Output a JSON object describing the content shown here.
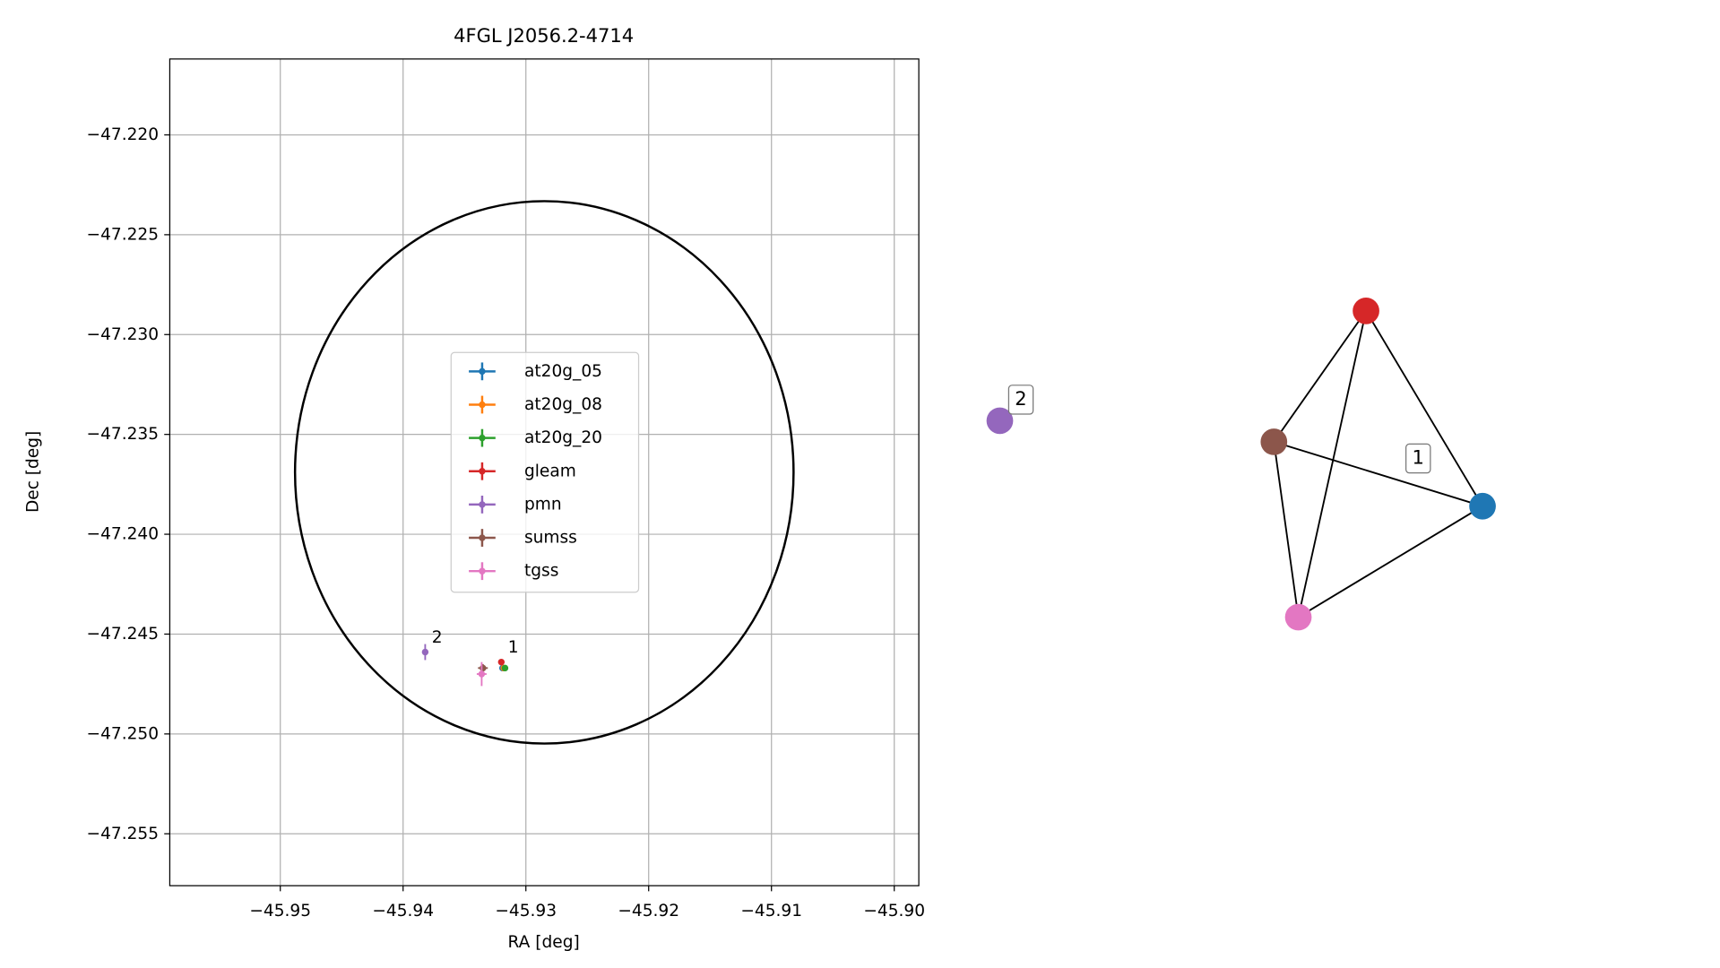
{
  "chart_data": [
    {
      "type": "errorbar",
      "title": "4FGL J2056.2-4714",
      "x_label": "RA [deg]",
      "y_label": "Dec [deg]",
      "xlim": [
        -45.959,
        -45.898
      ],
      "ylim": [
        -47.2576,
        -47.2162
      ],
      "xticks": [
        {
          "value": -45.95,
          "label": "−45.95"
        },
        {
          "value": -45.94,
          "label": "−45.94"
        },
        {
          "value": -45.93,
          "label": "−45.93"
        },
        {
          "value": -45.92,
          "label": "−45.92"
        },
        {
          "value": -45.91,
          "label": "−45.91"
        },
        {
          "value": -45.9,
          "label": "−45.90"
        }
      ],
      "yticks": [
        {
          "value": -47.22,
          "label": "−47.220"
        },
        {
          "value": -47.225,
          "label": "−47.225"
        },
        {
          "value": -47.23,
          "label": "−47.230"
        },
        {
          "value": -47.235,
          "label": "−47.235"
        },
        {
          "value": -47.24,
          "label": "−47.240"
        },
        {
          "value": -47.245,
          "label": "−47.245"
        },
        {
          "value": -47.25,
          "label": "−47.250"
        },
        {
          "value": -47.255,
          "label": "−47.255"
        }
      ],
      "grid": true,
      "legend": "center",
      "ellipse": {
        "ra": -45.9285,
        "dec": -47.2369,
        "width": 0.0406,
        "height": 0.02716,
        "color": "#000000"
      },
      "series": [
        {
          "name": "at20g_05",
          "color": "#1f77b4",
          "x": [
            -45.9319
          ],
          "values": [
            -47.2467
          ],
          "xerr": [
            0.0001
          ],
          "yerr": [
            0.0001
          ]
        },
        {
          "name": "at20g_08",
          "color": "#ff7f0e",
          "x": [
            -45.9318
          ],
          "values": [
            -47.2467
          ],
          "xerr": [
            0.0001
          ],
          "yerr": [
            0.0001
          ]
        },
        {
          "name": "at20g_20",
          "color": "#2ca02c",
          "x": [
            -45.9317
          ],
          "values": [
            -47.2467
          ],
          "xerr": [
            0.0001
          ],
          "yerr": [
            0.0001
          ]
        },
        {
          "name": "gleam",
          "color": "#d62728",
          "x": [
            -45.932
          ],
          "values": [
            -47.2464
          ],
          "xerr": [
            0.0001
          ],
          "yerr": [
            0.0001
          ]
        },
        {
          "name": "pmn",
          "color": "#9467bd",
          "x": [
            -45.9382
          ],
          "values": [
            -47.2459
          ],
          "xerr": [
            0.0001
          ],
          "yerr": [
            0.0004
          ]
        },
        {
          "name": "sumss",
          "color": "#8c564b",
          "x": [
            -45.9335
          ],
          "values": [
            -47.2467
          ],
          "xerr": [
            0.0004
          ],
          "yerr": [
            0.0002
          ]
        },
        {
          "name": "tgss",
          "color": "#e377c2",
          "x": [
            -45.9336
          ],
          "values": [
            -47.247
          ],
          "xerr": [
            0.0004
          ],
          "yerr": [
            0.0006
          ]
        }
      ],
      "annotations": [
        {
          "text": "2",
          "x": -45.9382,
          "y": -47.2459
        },
        {
          "text": "1",
          "x": -45.932,
          "y": -47.2464
        }
      ]
    },
    {
      "type": "network",
      "nodes": [
        {
          "color": "#9467bd"
        },
        {
          "color": "#d62728"
        },
        {
          "color": "#8c564b"
        },
        {
          "color": "#1f77b4"
        },
        {
          "color": "#e377c2"
        }
      ],
      "edges": [
        [
          1,
          2
        ],
        [
          1,
          4
        ],
        [
          1,
          3
        ],
        [
          2,
          3
        ],
        [
          2,
          4
        ],
        [
          4,
          3
        ]
      ],
      "group_labels": [
        "2",
        "1"
      ]
    }
  ]
}
